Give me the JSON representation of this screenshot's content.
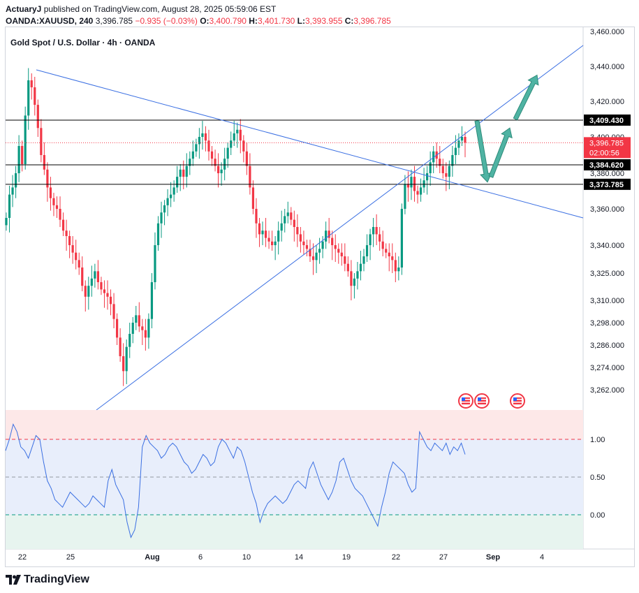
{
  "header": {
    "author": "ActuaryJ",
    "published_text": "published on TradingView.com, August 28, 2025 05:59:06 EST",
    "symbol": "OANDA:XAUUSD, 240",
    "last": "3,396.785",
    "change": "−0.935 (−0.03%)",
    "open_label": "O:",
    "open": "3,400.790",
    "high_label": "H:",
    "high": "3,401.730",
    "low_label": "L:",
    "low": "3,393.955",
    "close_label": "C:",
    "close": "3,396.785"
  },
  "footer": {
    "brand": "TradingView"
  },
  "chart_data": {
    "type": "candlestick",
    "title": "Gold Spot / U.S. Dollar · 4h · OANDA",
    "colors": {
      "up": "#089981",
      "down": "#f23645",
      "trendline": "#3a6fe2",
      "arrow": "#4fb3a3",
      "level": "#000000"
    },
    "price_axis_ticks": [
      3460,
      3440,
      3420,
      3400,
      3380,
      3360,
      3340,
      3325,
      3310,
      3298,
      3286,
      3274,
      3262
    ],
    "price_axis_labels": [
      "3,460.000",
      "3,440.000",
      "3,420.000",
      "3,400.000",
      "3,380.000",
      "3,360.000",
      "3,340.000",
      "3,325.000",
      "3,310.000",
      "3,298.000",
      "3,286.000",
      "3,274.000",
      "3,262.000"
    ],
    "time_axis_labels": [
      "22",
      "25",
      "Aug",
      "6",
      "10",
      "14",
      "19",
      "22",
      "27",
      "Sep",
      "4"
    ],
    "horizontal_levels": [
      {
        "label": "3,409.430",
        "value": 3409.43
      },
      {
        "label": "3,384.620",
        "value": 3384.62
      },
      {
        "label": "3,373.785",
        "value": 3373.785
      }
    ],
    "current_price": {
      "label": "3,396.785",
      "countdown": "02:00:56",
      "value": 3396.785
    },
    "closes": [
      3355,
      3368,
      3372,
      3380,
      3395,
      3385,
      3412,
      3432,
      3428,
      3418,
      3405,
      3390,
      3382,
      3372,
      3366,
      3362,
      3360,
      3354,
      3348,
      3345,
      3340,
      3336,
      3332,
      3328,
      3318,
      3312,
      3318,
      3322,
      3326,
      3320,
      3316,
      3314,
      3312,
      3308,
      3300,
      3290,
      3280,
      3272,
      3285,
      3292,
      3298,
      3302,
      3296,
      3294,
      3290,
      3300,
      3320,
      3340,
      3352,
      3358,
      3362,
      3366,
      3368,
      3372,
      3378,
      3382,
      3378,
      3384,
      3388,
      3392,
      3396,
      3400,
      3402,
      3398,
      3392,
      3388,
      3384,
      3380,
      3382,
      3388,
      3394,
      3398,
      3402,
      3404,
      3398,
      3392,
      3384,
      3372,
      3360,
      3352,
      3346,
      3348,
      3344,
      3342,
      3340,
      3342,
      3348,
      3352,
      3356,
      3358,
      3354,
      3350,
      3346,
      3342,
      3340,
      3338,
      3334,
      3332,
      3336,
      3338,
      3342,
      3348,
      3344,
      3340,
      3338,
      3336,
      3334,
      3330,
      3326,
      3318,
      3322,
      3326,
      3330,
      3334,
      3340,
      3346,
      3350,
      3346,
      3342,
      3338,
      3336,
      3334,
      3332,
      3326,
      3328,
      3360,
      3374,
      3372,
      3378,
      3370,
      3368,
      3372,
      3376,
      3380,
      3386,
      3392,
      3388,
      3384,
      3380,
      3378,
      3384,
      3390,
      3394,
      3398,
      3400,
      3396.785
    ],
    "rsi_levels": [
      1.0,
      0.5,
      0.0
    ],
    "rsi_level_labels": [
      "1.00",
      "0.50",
      "0.00"
    ],
    "rsi_values": [
      0.85,
      1.0,
      1.2,
      1.1,
      0.9,
      0.85,
      0.75,
      0.9,
      1.05,
      1.0,
      0.7,
      0.45,
      0.35,
      0.2,
      0.15,
      0.1,
      0.2,
      0.3,
      0.25,
      0.2,
      0.15,
      0.1,
      0.15,
      0.25,
      0.2,
      0.15,
      0.1,
      0.45,
      0.6,
      0.4,
      0.3,
      0.2,
      -0.1,
      -0.3,
      -0.2,
      0.1,
      0.9,
      1.05,
      0.95,
      0.9,
      0.85,
      0.75,
      0.8,
      0.9,
      0.95,
      0.9,
      0.8,
      0.7,
      0.65,
      0.55,
      0.6,
      0.7,
      0.8,
      0.75,
      0.65,
      0.7,
      0.9,
      1.0,
      0.95,
      0.85,
      0.75,
      0.9,
      0.85,
      0.7,
      0.5,
      0.3,
      0.15,
      -0.1,
      0.05,
      0.15,
      0.2,
      0.25,
      0.2,
      0.15,
      0.2,
      0.3,
      0.4,
      0.45,
      0.4,
      0.35,
      0.6,
      0.7,
      0.55,
      0.4,
      0.3,
      0.2,
      0.3,
      0.45,
      0.7,
      0.75,
      0.6,
      0.45,
      0.35,
      0.3,
      0.25,
      0.15,
      0.05,
      -0.05,
      -0.15,
      0.1,
      0.3,
      0.55,
      0.7,
      0.65,
      0.6,
      0.55,
      0.4,
      0.3,
      0.35,
      1.1,
      1.0,
      0.9,
      0.85,
      0.95,
      0.9,
      0.85,
      0.95,
      0.8,
      0.9,
      0.85,
      0.95,
      0.8
    ],
    "arrows": [
      {
        "from": [
          3409,
          3410
        ],
        "to": [
          3375,
          3380
        ]
      },
      {
        "from": [
          3378,
          3382
        ],
        "to": [
          3405,
          3408
        ]
      },
      {
        "from": [
          3410,
          3415
        ],
        "to": [
          3435,
          3437
        ]
      }
    ]
  }
}
